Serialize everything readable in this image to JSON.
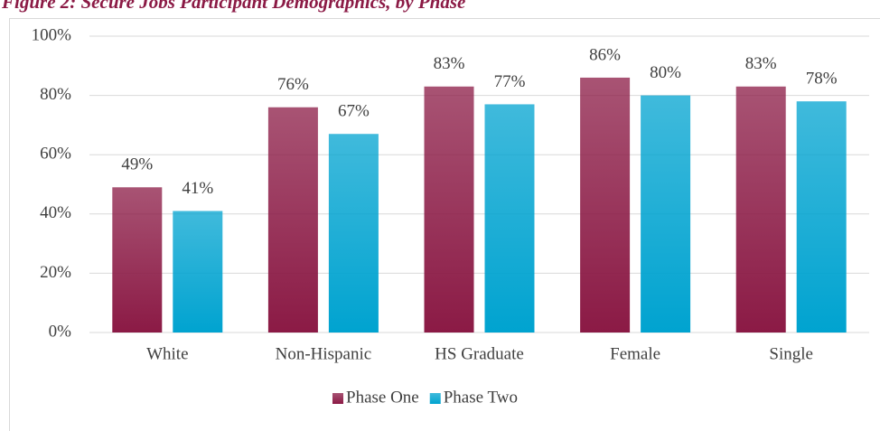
{
  "chart_data": {
    "type": "bar",
    "title": "Figure 2: Secure Jobs Participant Demographics, by Phase",
    "categories": [
      "White",
      "Non-Hispanic",
      "HS Graduate",
      "Female",
      "Single"
    ],
    "series": [
      {
        "name": "Phase One",
        "color": "#8b1a45",
        "values": [
          49,
          76,
          83,
          86,
          83
        ],
        "value_labels": [
          "49%",
          "76%",
          "83%",
          "86%",
          "83%"
        ]
      },
      {
        "name": "Phase Two",
        "color": "#00a3d0",
        "values": [
          41,
          67,
          77,
          80,
          78
        ],
        "value_labels": [
          "41%",
          "67%",
          "77%",
          "80%",
          "78%"
        ]
      }
    ],
    "ylim": [
      0,
      100
    ],
    "yticks": [
      {
        "value": 0,
        "label": "0%"
      },
      {
        "value": 20,
        "label": "20%"
      },
      {
        "value": 40,
        "label": "40%"
      },
      {
        "value": 60,
        "label": "60%"
      },
      {
        "value": 80,
        "label": "80%"
      },
      {
        "value": 100,
        "label": "100%"
      }
    ],
    "grid": true,
    "legend": "bottom"
  }
}
